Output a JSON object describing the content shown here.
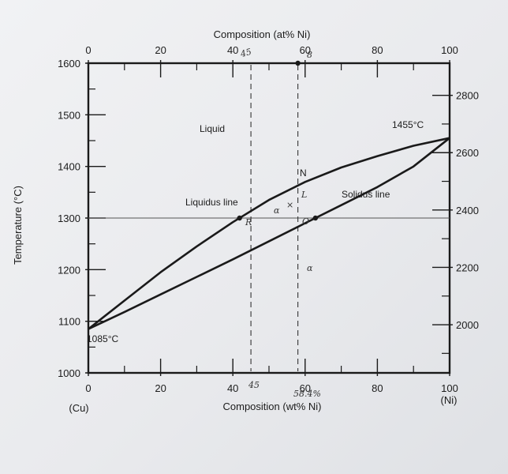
{
  "chart_data": {
    "type": "line",
    "title": "",
    "top_axis": {
      "label": "Composition (at% Ni)",
      "ticks": [
        0,
        20,
        40,
        60,
        80,
        100
      ],
      "tick_labels": [
        "0",
        "20",
        "40",
        "60",
        "80",
        "100"
      ],
      "range": [
        0,
        100
      ]
    },
    "bottom_axis": {
      "label": "Composition (wt% Ni)",
      "ticks": [
        0,
        20,
        40,
        60,
        80,
        100
      ],
      "tick_labels": [
        "0",
        "20",
        "40",
        "60",
        "80",
        "100"
      ],
      "range": [
        0,
        100
      ],
      "left_end_label": "(Cu)",
      "right_end_label": "(Ni)"
    },
    "left_axis": {
      "label": "Temperature (°C)",
      "ticks": [
        1000,
        1100,
        1200,
        1300,
        1400,
        1500,
        1600
      ],
      "tick_labels": [
        "1000",
        "1100",
        "1200",
        "1300",
        "1400",
        "1500",
        "1600"
      ],
      "range": [
        1000,
        1600
      ]
    },
    "right_axis": {
      "ticks": [
        2000,
        2200,
        2400,
        2600,
        2800
      ],
      "tick_labels": [
        "2000",
        "2200",
        "2400",
        "2600",
        "2800"
      ]
    },
    "series": [
      {
        "name": "Liquidus line",
        "x": [
          0,
          10,
          20,
          30,
          40,
          50,
          60,
          70,
          80,
          90,
          100
        ],
        "y": [
          1085,
          1140,
          1195,
          1245,
          1292,
          1335,
          1370,
          1398,
          1420,
          1440,
          1455
        ]
      },
      {
        "name": "Solidus line",
        "x": [
          0,
          10,
          20,
          30,
          40,
          50,
          60,
          70,
          80,
          90,
          100
        ],
        "y": [
          1085,
          1118,
          1152,
          1186,
          1220,
          1255,
          1290,
          1325,
          1360,
          1400,
          1455
        ]
      }
    ],
    "reference_lines": {
      "horizontal_temperature": 1300,
      "vertical_wt_pct": [
        45,
        58
      ]
    },
    "annotations": {
      "cu_melting": "1085°C",
      "ni_melting": "1455°C",
      "liquid_region": "Liquid",
      "alpha_region": "α",
      "two_phase_alpha": "α",
      "two_phase_x": "×",
      "two_phase_L": "L",
      "point_N": "N",
      "point_O": "O",
      "point_R": "R"
    },
    "handwritten": {
      "top_45": "45",
      "top_60": "8",
      "bottom_45": "45",
      "bottom_58": "58.4%"
    },
    "grid": false,
    "legend": "none"
  }
}
